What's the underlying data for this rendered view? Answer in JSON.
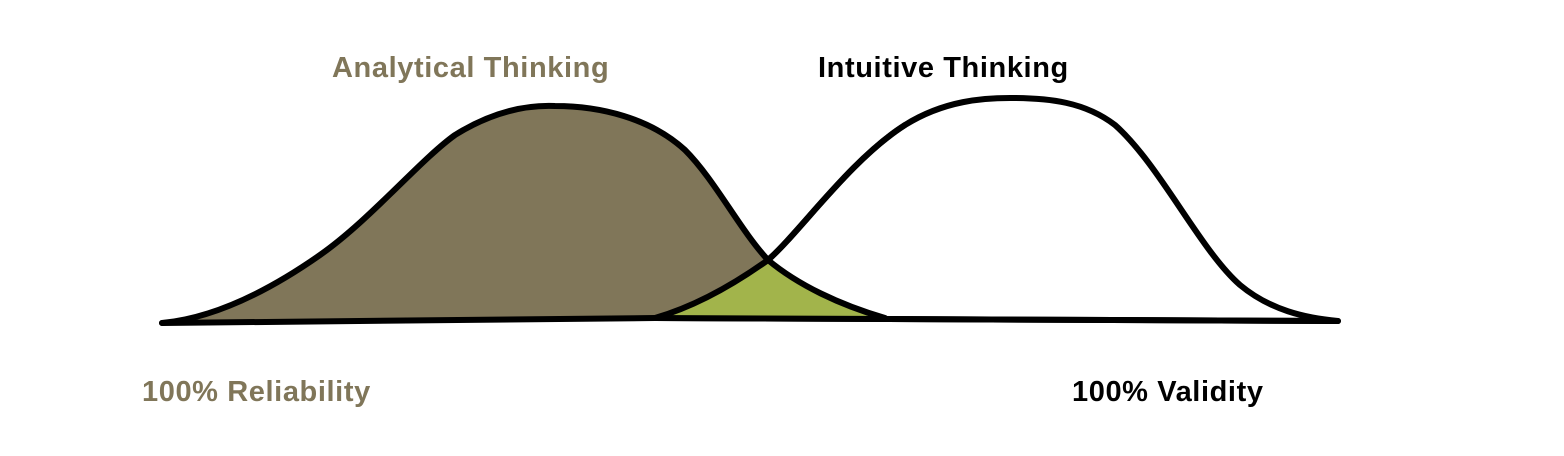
{
  "labels": {
    "analytical": "Analytical Thinking",
    "intuitive": "Intuitive Thinking",
    "reliability": "100% Reliability",
    "validity": "100% Validity"
  },
  "colors": {
    "analytical": "#807659",
    "intuitive": "#000000",
    "overlap": "#a2b44b",
    "curve_fill": "#ffffff",
    "outline": "#000000"
  }
}
